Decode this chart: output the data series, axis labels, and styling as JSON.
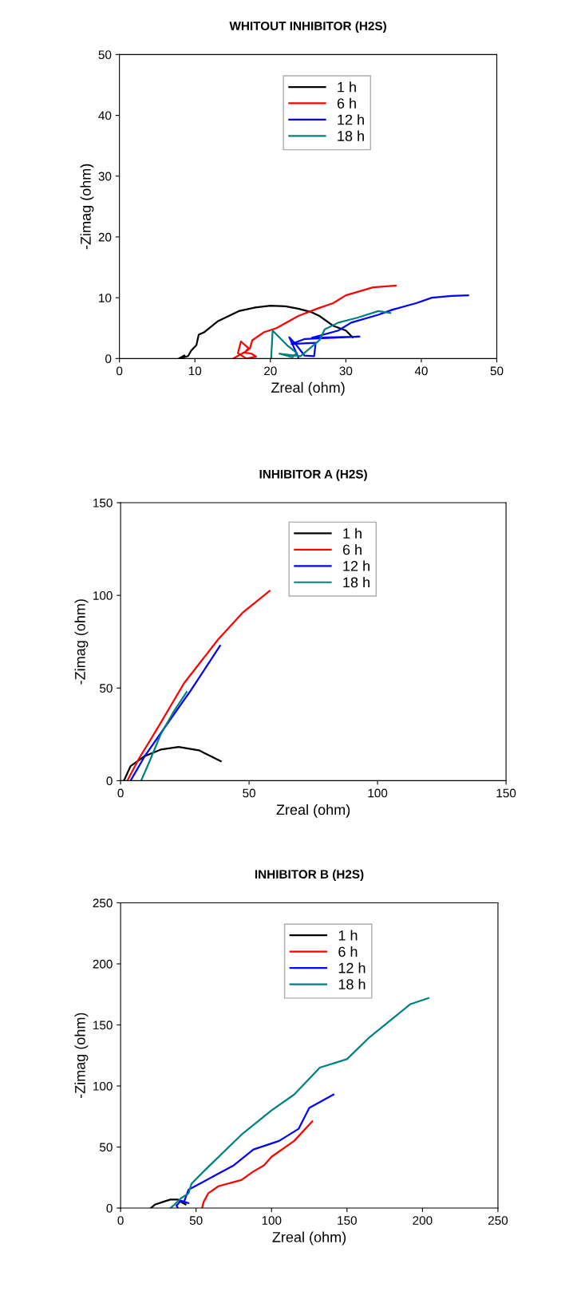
{
  "chart_data": [
    {
      "type": "line",
      "title": "WHITOUT INHIBITOR (H2S)",
      "xlabel": "Zreal (ohm)",
      "ylabel": "-Zimag (ohm)",
      "xlim": [
        0,
        50
      ],
      "ylim": [
        0,
        50
      ],
      "xticks": [
        0,
        10,
        20,
        30,
        40,
        50
      ],
      "yticks": [
        0,
        10,
        20,
        30,
        40,
        50
      ],
      "grid": false,
      "legend": "top",
      "marker": "none",
      "line_style": "solid",
      "series": [
        {
          "name": "1 h",
          "color": "#000000",
          "x": [
            7.9,
            8.6,
            8.2,
            9.1,
            9.5,
            10.2,
            10.5,
            11.2,
            13,
            15.8,
            18,
            20,
            22,
            23.7,
            25.5,
            26.5,
            28.3,
            30,
            30.9
          ],
          "values": [
            0,
            0.5,
            0.1,
            0.4,
            1.3,
            2.2,
            3.9,
            4.3,
            6.1,
            7.8,
            8.4,
            8.7,
            8.6,
            8.2,
            7.6,
            7,
            5.4,
            4.6,
            3.5
          ]
        },
        {
          "name": "6 h",
          "color": "#ff0000",
          "x": [
            15.1,
            16.5,
            17.5,
            18.1,
            16.8,
            15.7,
            16.1,
            17.1,
            16.6,
            17.3,
            17.6,
            19.1,
            20.8,
            23.7,
            26.4,
            28.3,
            30,
            33.6,
            36.6
          ],
          "values": [
            0,
            1,
            0.8,
            0.3,
            0,
            0.9,
            2.8,
            1.7,
            1.0,
            1.7,
            3,
            4.3,
            5,
            7,
            8.3,
            9.1,
            10.4,
            11.7,
            12
          ]
        },
        {
          "name": "12 h",
          "color": "#0000ff",
          "x": [
            23.7,
            22.5,
            23.4,
            24.5,
            25.8,
            26,
            22.8,
            24.5,
            31.8,
            25.5,
            29,
            30.7,
            34.3,
            36.1,
            39.3,
            41.4,
            44,
            46.2
          ],
          "values": [
            0.2,
            3.5,
            2.3,
            0.5,
            0.4,
            2.6,
            2.4,
            3.2,
            3.6,
            3.4,
            4.6,
            5.9,
            7.2,
            8,
            9.1,
            10,
            10.3,
            10.4
          ]
        },
        {
          "name": "18 h",
          "color": "#008080",
          "x": [
            20.1,
            20.3,
            22.2,
            23.5,
            22.9,
            21.2,
            24,
            26.5,
            27.2,
            29,
            31.5,
            34.3,
            35.9
          ],
          "values": [
            0,
            4.6,
            2.2,
            0.9,
            0.2,
            0.8,
            0.4,
            3,
            4.8,
            5.9,
            6.7,
            7.8,
            7.5
          ]
        }
      ]
    },
    {
      "type": "line",
      "title": "INHIBITOR A (H2S)",
      "xlabel": "Zreal (ohm)",
      "ylabel": "-Zimag (ohm)",
      "xlim": [
        0,
        150
      ],
      "ylim": [
        0,
        150
      ],
      "xticks": [
        0,
        50,
        100,
        150
      ],
      "yticks": [
        0,
        50,
        100,
        150
      ],
      "grid": false,
      "legend": "top",
      "marker": "none",
      "line_style": "solid",
      "series": [
        {
          "name": "1 h",
          "color": "#000000",
          "x": [
            1.3,
            3.9,
            9.3,
            15.6,
            22.6,
            30.5,
            39
          ],
          "values": [
            0,
            7.9,
            13.2,
            16.8,
            18.2,
            16.4,
            10.5
          ]
        },
        {
          "name": "6 h",
          "color": "#ff0000",
          "x": [
            2.6,
            7.1,
            14.6,
            24.7,
            38,
            47.6,
            58
          ],
          "values": [
            0,
            11.8,
            28.9,
            52.6,
            76.3,
            90.8,
            102.4
          ]
        },
        {
          "name": "12 h",
          "color": "#0000ff",
          "x": [
            3.9,
            9.3,
            17.8,
            27.3,
            38.7
          ],
          "values": [
            0,
            13,
            30,
            48.7,
            72.8
          ]
        },
        {
          "name": "18 h",
          "color": "#008080",
          "x": [
            8,
            10.9,
            15.6,
            21,
            25.7
          ],
          "values": [
            0,
            9.2,
            25,
            38,
            47.8
          ]
        }
      ]
    },
    {
      "type": "line",
      "title": "INHIBITOR B (H2S)",
      "xlabel": "Zreal (ohm)",
      "ylabel": "-Zimag (ohm)",
      "xlim": [
        0,
        250
      ],
      "ylim": [
        0,
        250
      ],
      "xticks": [
        0,
        50,
        100,
        150,
        200,
        250
      ],
      "yticks": [
        0,
        50,
        100,
        150,
        200,
        250
      ],
      "grid": false,
      "legend": "top",
      "marker": "none",
      "line_style": "solid",
      "series": [
        {
          "name": "1 h",
          "color": "#000000",
          "x": [
            20,
            23,
            28,
            33,
            38,
            40,
            43
          ],
          "values": [
            0,
            3,
            5,
            7,
            7,
            5,
            3
          ]
        },
        {
          "name": "6 h",
          "color": "#ff0000",
          "x": [
            54,
            55,
            58,
            65,
            80,
            88,
            95,
            100,
            115,
            127
          ],
          "values": [
            0,
            5,
            12,
            18,
            23,
            30,
            35,
            42,
            55,
            71
          ]
        },
        {
          "name": "12 h",
          "color": "#0000ff",
          "x": [
            38,
            37,
            40,
            45,
            42,
            45,
            60,
            75,
            88,
            105,
            118,
            125,
            141
          ],
          "values": [
            0,
            2,
            6,
            4,
            5,
            15,
            25,
            35,
            48,
            55,
            65,
            82,
            93
          ]
        },
        {
          "name": "18 h",
          "color": "#008080",
          "x": [
            33,
            35,
            40,
            45,
            47,
            55,
            80,
            100,
            115,
            132,
            150,
            165,
            192,
            204
          ],
          "values": [
            0,
            2,
            8,
            12,
            20,
            30,
            60,
            80,
            93,
            115,
            122,
            140,
            167,
            172
          ]
        }
      ]
    }
  ]
}
